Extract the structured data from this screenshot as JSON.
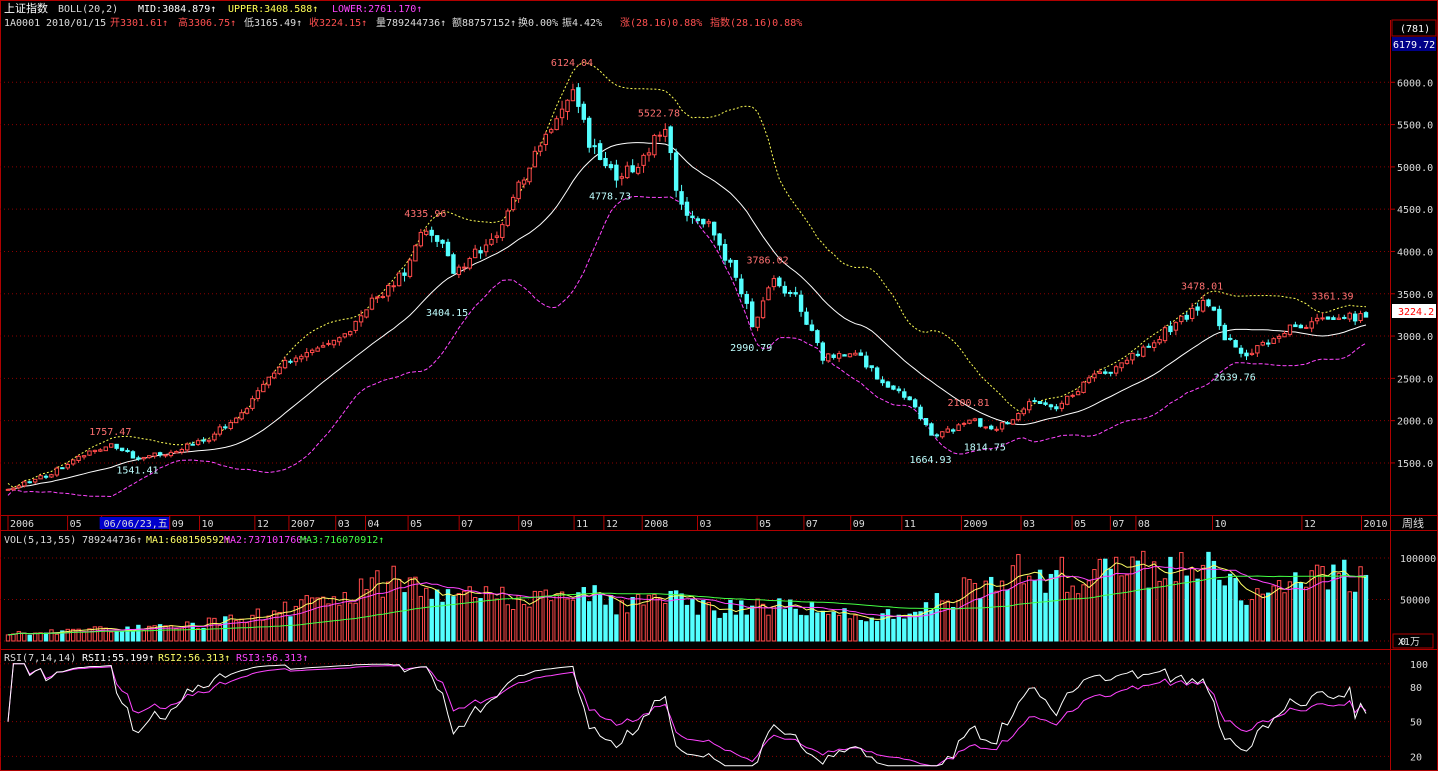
{
  "header": {
    "title": "上证指数",
    "indicator_name": "BOLL(20,2)",
    "mid": "MID:3084.879↑",
    "upper": "UPPER:3408.588↑",
    "lower": "LOWER:2761.170↑",
    "info_line": {
      "code": "1A0001",
      "date": "2010/01/15",
      "open": "开3301.61↑",
      "high": "高3306.75↑",
      "low": "低3165.49↑",
      "close": "收3224.15↑",
      "volume": "量789244736↑",
      "amount": "额88757152↑",
      "turnover": "换0.00%",
      "amplitude": "振4.42%",
      "change": "涨(28.16)0.88%",
      "index_change": "指数(28.16)0.88%"
    }
  },
  "right_panel": {
    "count_box": "(781)",
    "top_value": "6179.72",
    "current_price": "3224.2",
    "period_label": "周线",
    "vol_unit": "X1万"
  },
  "volume_panel": {
    "label": "VOL(5,13,55)",
    "value": "789244736↑",
    "ma1": "MA1:608150592↑",
    "ma2": "MA2:737101760↑",
    "ma3": "MA3:716070912↑"
  },
  "rsi_panel": {
    "label": "RSI(7,14,14)",
    "rsi1": "RSI1:55.199↑",
    "rsi2": "RSI2:56.313↑",
    "rsi3": "RSI3:56.313↑"
  },
  "colors": {
    "up": "#ff4a4a",
    "down": "#54ffff",
    "mid_line": "#ffffff",
    "upper_line": "#ffff55",
    "lower_line": "#ff44ff",
    "ma1": "#ffff66",
    "ma2": "#ff44ff",
    "ma3": "#44ff44",
    "grid": "#8b0000"
  },
  "chart_data": [
    {
      "type": "candlestick",
      "title": "上证指数 BOLL(20,2)",
      "y_ticks": [
        1500,
        2000,
        2500,
        3000,
        3500,
        4000,
        4500,
        5000,
        5500,
        6000
      ],
      "ylim": [
        920,
        6500
      ],
      "x_labels": [
        "2006",
        "05",
        "06/06/23,五",
        "09",
        "10",
        "12",
        "2007",
        "03",
        "04",
        "05",
        "07",
        "09",
        "11",
        "12",
        "2008",
        "03",
        "05",
        "07",
        "09",
        "11",
        "2009",
        "03",
        "05",
        "07",
        "08",
        "10",
        "12",
        "2010"
      ],
      "anchors": [
        {
          "t": 0,
          "v": 1180
        },
        {
          "t": 8,
          "v": 1380
        },
        {
          "t": 15,
          "v": 1640
        },
        {
          "t": 19,
          "v": 1700
        },
        {
          "t": 24,
          "v": 1555
        },
        {
          "t": 31,
          "v": 1650
        },
        {
          "t": 37,
          "v": 1800
        },
        {
          "t": 43,
          "v": 2080
        },
        {
          "t": 48,
          "v": 2500
        },
        {
          "t": 52,
          "v": 2730
        },
        {
          "t": 57,
          "v": 2880
        },
        {
          "t": 63,
          "v": 3050
        },
        {
          "t": 67,
          "v": 3400
        },
        {
          "t": 70,
          "v": 3550
        },
        {
          "t": 73,
          "v": 3780
        },
        {
          "t": 75,
          "v": 4000
        },
        {
          "t": 76,
          "v": 4250
        },
        {
          "t": 80,
          "v": 4100
        },
        {
          "t": 82,
          "v": 3750
        },
        {
          "t": 85,
          "v": 3900
        },
        {
          "t": 90,
          "v": 4200
        },
        {
          "t": 94,
          "v": 4800
        },
        {
          "t": 100,
          "v": 5450
        },
        {
          "t": 104,
          "v": 5950
        },
        {
          "t": 107,
          "v": 5300
        },
        {
          "t": 112,
          "v": 4900
        },
        {
          "t": 116,
          "v": 5050
        },
        {
          "t": 119,
          "v": 5350
        },
        {
          "t": 121,
          "v": 5400
        },
        {
          "t": 124,
          "v": 4500
        },
        {
          "t": 129,
          "v": 4350
        },
        {
          "t": 134,
          "v": 3700
        },
        {
          "t": 137,
          "v": 3150
        },
        {
          "t": 141,
          "v": 3650
        },
        {
          "t": 145,
          "v": 3450
        },
        {
          "t": 150,
          "v": 2750
        },
        {
          "t": 156,
          "v": 2800
        },
        {
          "t": 161,
          "v": 2450
        },
        {
          "t": 166,
          "v": 2250
        },
        {
          "t": 170,
          "v": 1820
        },
        {
          "t": 174,
          "v": 1900
        },
        {
          "t": 177,
          "v": 2020
        },
        {
          "t": 181,
          "v": 1900
        },
        {
          "t": 185,
          "v": 2000
        },
        {
          "t": 189,
          "v": 2250
        },
        {
          "t": 193,
          "v": 2150
        },
        {
          "t": 199,
          "v": 2500
        },
        {
          "t": 205,
          "v": 2650
        },
        {
          "t": 212,
          "v": 3000
        },
        {
          "t": 217,
          "v": 3250
        },
        {
          "t": 221,
          "v": 3400
        },
        {
          "t": 224,
          "v": 2950
        },
        {
          "t": 228,
          "v": 2800
        },
        {
          "t": 232,
          "v": 2900
        },
        {
          "t": 236,
          "v": 3100
        },
        {
          "t": 240,
          "v": 3150
        },
        {
          "t": 245,
          "v": 3250
        },
        {
          "t": 250,
          "v": 3224
        }
      ],
      "annotations": [
        {
          "t": 19,
          "v": 1757.47,
          "text": "1757.47",
          "pos": "above"
        },
        {
          "t": 24,
          "v": 1541.41,
          "text": "1541.41",
          "pos": "below"
        },
        {
          "t": 77,
          "v": 4335.96,
          "text": "4335.96",
          "pos": "above"
        },
        {
          "t": 81,
          "v": 3404.15,
          "text": "3404.15",
          "pos": "below"
        },
        {
          "t": 104,
          "v": 6124.04,
          "text": "6124.04",
          "pos": "above"
        },
        {
          "t": 111,
          "v": 4778.73,
          "text": "4778.73",
          "pos": "below"
        },
        {
          "t": 120,
          "v": 5522.78,
          "text": "5522.78",
          "pos": "above"
        },
        {
          "t": 137,
          "v": 2990.79,
          "text": "2990.79",
          "pos": "below"
        },
        {
          "t": 140,
          "v": 3786.02,
          "text": "3786.02",
          "pos": "above"
        },
        {
          "t": 170,
          "v": 1664.93,
          "text": "1664.93",
          "pos": "below"
        },
        {
          "t": 177,
          "v": 2100.81,
          "text": "2100.81",
          "pos": "above"
        },
        {
          "t": 180,
          "v": 1814.75,
          "text": "1814.75",
          "pos": "below"
        },
        {
          "t": 220,
          "v": 3478.01,
          "text": "3478.01",
          "pos": "above"
        },
        {
          "t": 226,
          "v": 2639.76,
          "text": "2639.76",
          "pos": "below"
        },
        {
          "t": 244,
          "v": 3361.39,
          "text": "3361.39",
          "pos": "above"
        }
      ]
    },
    {
      "type": "bar",
      "title": "VOL(5,13,55)",
      "y_ticks": [
        0,
        50000,
        100000
      ],
      "ylim": [
        0,
        112000
      ],
      "unit": "X1万",
      "vol_anchors": [
        {
          "t": 0,
          "v": 8000
        },
        {
          "t": 15,
          "v": 14000
        },
        {
          "t": 30,
          "v": 16000
        },
        {
          "t": 45,
          "v": 30000
        },
        {
          "t": 60,
          "v": 52000
        },
        {
          "t": 75,
          "v": 78000
        },
        {
          "t": 82,
          "v": 62000
        },
        {
          "t": 92,
          "v": 52000
        },
        {
          "t": 104,
          "v": 62000
        },
        {
          "t": 112,
          "v": 44000
        },
        {
          "t": 121,
          "v": 50000
        },
        {
          "t": 130,
          "v": 38000
        },
        {
          "t": 140,
          "v": 44000
        },
        {
          "t": 152,
          "v": 32000
        },
        {
          "t": 165,
          "v": 30000
        },
        {
          "t": 174,
          "v": 55000
        },
        {
          "t": 186,
          "v": 82000
        },
        {
          "t": 200,
          "v": 78000
        },
        {
          "t": 212,
          "v": 86000
        },
        {
          "t": 220,
          "v": 95000
        },
        {
          "t": 228,
          "v": 55000
        },
        {
          "t": 236,
          "v": 62000
        },
        {
          "t": 244,
          "v": 80000
        },
        {
          "t": 250,
          "v": 78924
        }
      ]
    },
    {
      "type": "line",
      "title": "RSI(7,14,14)",
      "y_ticks": [
        20,
        50,
        80,
        100
      ],
      "ylim": [
        10,
        105
      ]
    }
  ]
}
